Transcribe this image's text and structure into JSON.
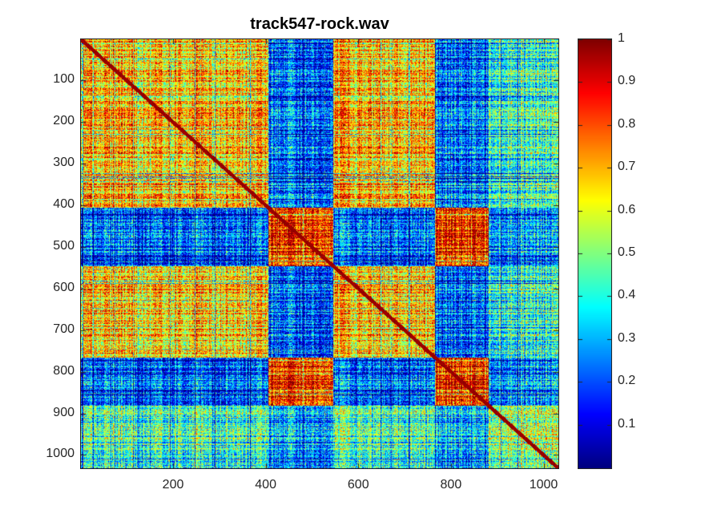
{
  "chart_data": {
    "type": "heatmap",
    "title": "track547-rock.wav",
    "xlabel": "",
    "ylabel": "",
    "matrix_size": 1032,
    "xlim": [
      1,
      1032
    ],
    "ylim": [
      1,
      1032
    ],
    "y_direction": "reversed",
    "x_ticks": [
      200,
      400,
      600,
      800,
      1000
    ],
    "x_tick_labels": [
      "200",
      "400",
      "600",
      "800",
      "1000"
    ],
    "y_ticks": [
      100,
      200,
      300,
      400,
      500,
      600,
      700,
      800,
      900,
      1000
    ],
    "y_tick_labels": [
      "100",
      "200",
      "300",
      "400",
      "500",
      "600",
      "700",
      "800",
      "900",
      "1000"
    ],
    "colorbar": {
      "colormap": "jet",
      "clim": [
        0,
        1
      ],
      "ticks": [
        0.1,
        0.2,
        0.3,
        0.4,
        0.5,
        0.6,
        0.7,
        0.8,
        0.9,
        1
      ],
      "tick_labels": [
        "0.1",
        "0.2",
        "0.3",
        "0.4",
        "0.5",
        "0.6",
        "0.7",
        "0.8",
        "0.9",
        "1"
      ],
      "placement": "right"
    },
    "segments": [
      {
        "range": [
          1,
          405
        ],
        "kind": "A"
      },
      {
        "range": [
          405,
          545
        ],
        "kind": "B"
      },
      {
        "range": [
          545,
          765
        ],
        "kind": "A"
      },
      {
        "range": [
          765,
          880
        ],
        "kind": "B"
      },
      {
        "range": [
          880,
          1032
        ],
        "kind": "C"
      }
    ],
    "block_means": {
      "A-A": 0.7,
      "B-B": 0.85,
      "C-C": 0.55,
      "A-B": 0.24,
      "A-C": 0.45,
      "B-C": 0.3
    },
    "grid": false
  }
}
